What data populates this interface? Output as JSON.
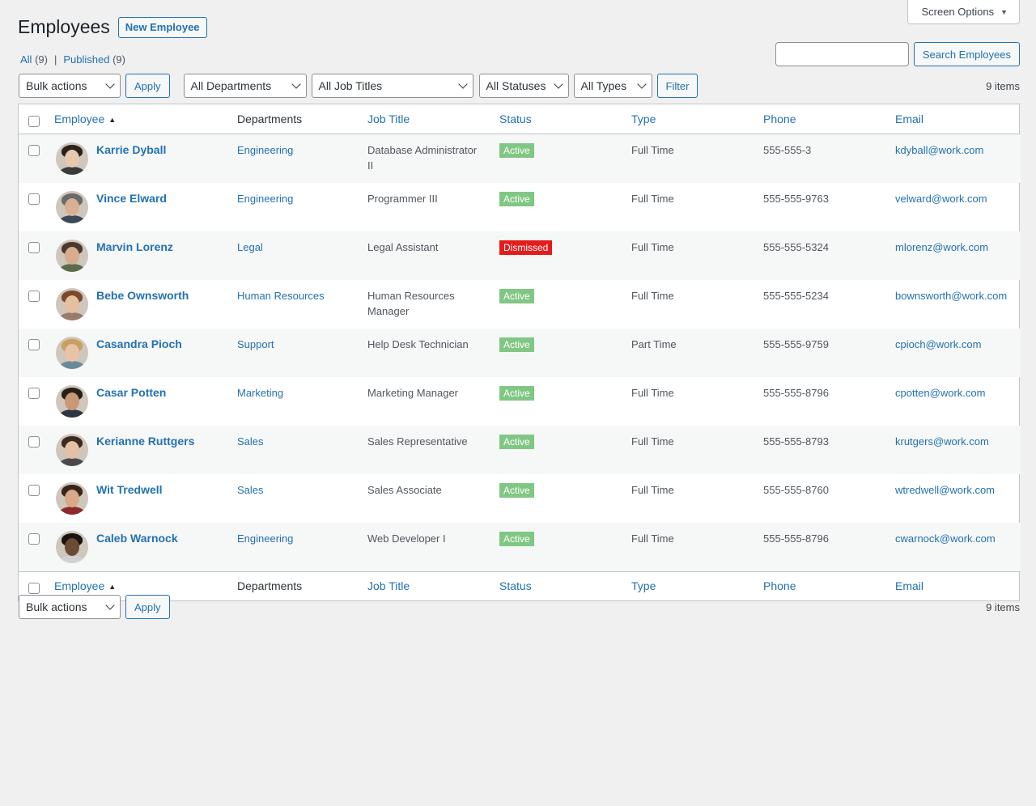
{
  "screen_options": {
    "label": "Screen Options"
  },
  "header": {
    "title": "Employees",
    "new_button": "New Employee"
  },
  "views": [
    {
      "label": "All",
      "count": "(9)"
    },
    {
      "label": "Published",
      "count": "(9)"
    }
  ],
  "views_separator": "|",
  "search": {
    "button": "Search Employees",
    "value": ""
  },
  "tablenav": {
    "bulk_actions": "Bulk actions",
    "apply": "Apply",
    "departments": "All Departments",
    "job_titles": "All Job Titles",
    "statuses": "All Statuses",
    "types": "All Types",
    "filter": "Filter",
    "items_count": "9 items"
  },
  "columns": {
    "employee": "Employee",
    "departments": "Departments",
    "job_title": "Job Title",
    "status": "Status",
    "type": "Type",
    "phone": "Phone",
    "email": "Email"
  },
  "colors": {
    "active_badge": "#81c784",
    "dismissed_badge": "#e31c1c",
    "link": "#2271b1"
  },
  "employees": [
    {
      "name": "Karrie Dyball",
      "department": "Engineering",
      "job_title": "Database Administrator II",
      "status": "Active",
      "type": "Full Time",
      "phone": "555-555-3",
      "email": "kdyball@work.com"
    },
    {
      "name": "Vince Elward",
      "department": "Engineering",
      "job_title": "Programmer III",
      "status": "Active",
      "type": "Full Time",
      "phone": "555-555-9763",
      "email": "velward@work.com"
    },
    {
      "name": "Marvin Lorenz",
      "department": "Legal",
      "job_title": "Legal Assistant",
      "status": "Dismissed",
      "type": "Full Time",
      "phone": "555-555-5324",
      "email": "mlorenz@work.com"
    },
    {
      "name": "Bebe Ownsworth",
      "department": "Human Resources",
      "job_title": "Human Resources Manager",
      "status": "Active",
      "type": "Full Time",
      "phone": "555-555-5234",
      "email": "bownsworth@work.com"
    },
    {
      "name": "Casandra Pioch",
      "department": "Support",
      "job_title": "Help Desk Technician",
      "status": "Active",
      "type": "Part Time",
      "phone": "555-555-9759",
      "email": "cpioch@work.com"
    },
    {
      "name": "Casar Potten",
      "department": "Marketing",
      "job_title": "Marketing Manager",
      "status": "Active",
      "type": "Full Time",
      "phone": "555-555-8796",
      "email": "cpotten@work.com"
    },
    {
      "name": "Kerianne Ruttgers",
      "department": "Sales",
      "job_title": "Sales Representative",
      "status": "Active",
      "type": "Full Time",
      "phone": "555-555-8793",
      "email": "krutgers@work.com"
    },
    {
      "name": "Wit Tredwell",
      "department": "Sales",
      "job_title": "Sales Associate",
      "status": "Active",
      "type": "Full Time",
      "phone": "555-555-8760",
      "email": "wtredwell@work.com"
    },
    {
      "name": "Caleb Warnock",
      "department": "Engineering",
      "job_title": "Web Developer I",
      "status": "Active",
      "type": "Full Time",
      "phone": "555-555-8796",
      "email": "cwarnock@work.com"
    }
  ]
}
